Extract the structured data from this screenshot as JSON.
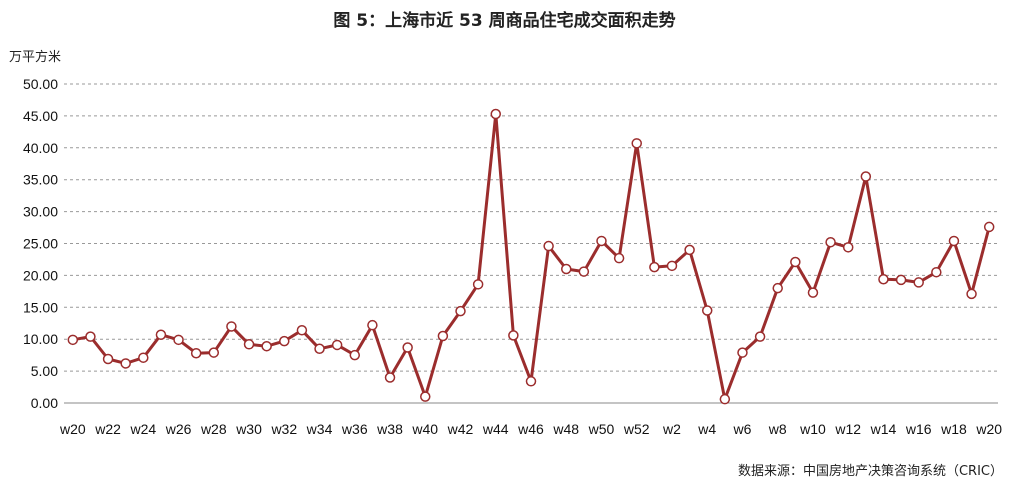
{
  "chart_data": {
    "type": "line",
    "title": "图 5：上海市近 53 周商品住宅成交面积走势",
    "ylabel": "万平方米",
    "source": "数据来源：中国房地产决策咨询系统（CRIC）",
    "ylim": [
      0,
      50
    ],
    "yticks": [
      "0.00",
      "5.00",
      "10.00",
      "15.00",
      "20.00",
      "25.00",
      "30.00",
      "35.00",
      "40.00",
      "45.00",
      "50.00"
    ],
    "grid": true,
    "categories": [
      "w20",
      "w21",
      "w22",
      "w23",
      "w24",
      "w25",
      "w26",
      "w27",
      "w28",
      "w29",
      "w30",
      "w31",
      "w32",
      "w33",
      "w34",
      "w35",
      "w36",
      "w37",
      "w38",
      "w39",
      "w40",
      "w41",
      "w42",
      "w43",
      "w44",
      "w45",
      "w46",
      "w47",
      "w48",
      "w49",
      "w50",
      "w51",
      "w52",
      "w1",
      "w2",
      "w3",
      "w4",
      "w5",
      "w6",
      "w7",
      "w8",
      "w9",
      "w10",
      "w11",
      "w12",
      "w13",
      "w14",
      "w15",
      "w16",
      "w17",
      "w18",
      "w19",
      "w20"
    ],
    "tick_labels_shown": [
      "w20",
      "w22",
      "w24",
      "w26",
      "w28",
      "w30",
      "w32",
      "w34",
      "w36",
      "w38",
      "w40",
      "w42",
      "w44",
      "w46",
      "w48",
      "w50",
      "w52",
      "w2",
      "w4",
      "w6",
      "w8",
      "w10",
      "w12",
      "w14",
      "w16",
      "w18",
      "w20"
    ],
    "series": [
      {
        "name": "",
        "color": "#9b2d2d",
        "values": [
          9.9,
          10.4,
          6.9,
          6.2,
          7.1,
          10.7,
          9.9,
          7.8,
          7.9,
          12.0,
          9.2,
          8.9,
          9.7,
          11.4,
          8.5,
          9.1,
          7.5,
          12.2,
          4.0,
          8.7,
          1.0,
          10.5,
          14.4,
          18.6,
          45.3,
          10.6,
          3.4,
          24.6,
          21.0,
          20.6,
          25.4,
          22.7,
          40.7,
          21.3,
          21.5,
          24.0,
          14.5,
          0.6,
          7.9,
          10.4,
          18.0,
          22.1,
          17.3,
          25.2,
          24.4,
          35.5,
          19.4,
          19.3,
          18.9,
          20.5,
          25.4,
          17.1,
          27.6
        ]
      }
    ]
  }
}
